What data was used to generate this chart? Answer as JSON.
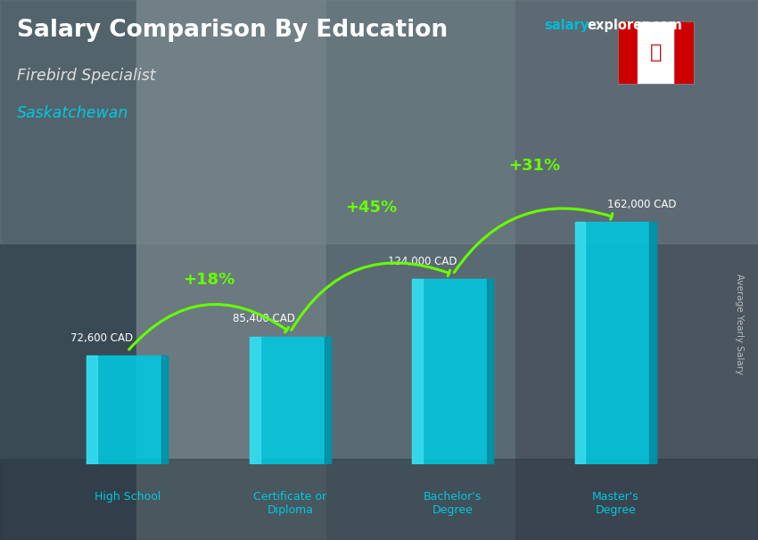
{
  "title": "Salary Comparison By Education",
  "subtitle": "Firebird Specialist",
  "location": "Saskatchewan",
  "ylabel": "Average Yearly Salary",
  "categories": [
    "High School",
    "Certificate or\nDiploma",
    "Bachelor's\nDegree",
    "Master's\nDegree"
  ],
  "values": [
    72600,
    85400,
    124000,
    162000
  ],
  "value_labels": [
    "72,600 CAD",
    "85,400 CAD",
    "124,000 CAD",
    "162,000 CAD"
  ],
  "pct_changes": [
    "+18%",
    "+45%",
    "+31%"
  ],
  "bar_color": "#00c8e0",
  "bar_highlight": "#40e0f0",
  "pct_color": "#66ff00",
  "title_color": "#ffffff",
  "subtitle_color": "#e0e0e0",
  "location_color": "#00c8e0",
  "ylabel_color": "#cccccc",
  "value_color": "#ffffff",
  "xlabel_color": "#00c8e0",
  "brand_color_salary": "#00bcd4",
  "brand_color_explorer": "#ffffff",
  "bg_color": "#4a5a6a",
  "ylim": [
    0,
    195000
  ],
  "bar_width": 0.5
}
